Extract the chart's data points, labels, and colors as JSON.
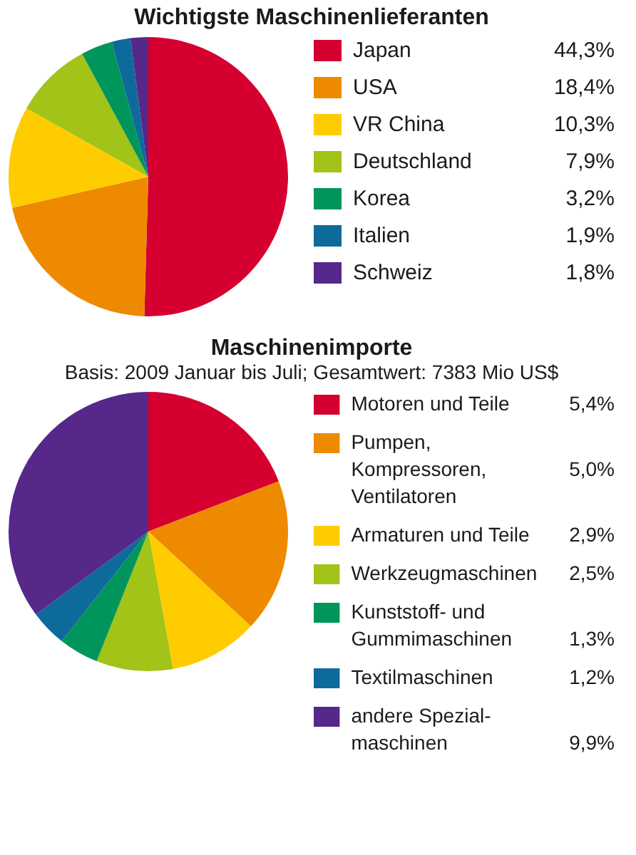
{
  "chart_data": [
    {
      "type": "pie",
      "title": "Wichtigste Maschinenlieferanten",
      "categories": [
        "Japan",
        "USA",
        "VR China",
        "Deutschland",
        "Korea",
        "Italien",
        "Schweiz"
      ],
      "values": [
        44.3,
        18.4,
        10.3,
        7.9,
        3.2,
        1.9,
        1.8
      ],
      "value_labels": [
        "44,3%",
        "18,4%",
        "10,3%",
        "7,9%",
        "3,2%",
        "1,9%",
        "1,8%"
      ],
      "colors": [
        "#d5002f",
        "#ee8a00",
        "#ffcc00",
        "#a2c317",
        "#00955a",
        "#0e6a9a",
        "#55288a"
      ],
      "legend": "right"
    },
    {
      "type": "pie",
      "title": "Maschinenimporte",
      "subtitle": "Basis: 2009 Januar bis Juli; Gesamtwert: 7383 Mio US$",
      "categories": [
        "Motoren und Teile",
        "Pumpen,\nKompressoren,\nVentilatoren",
        "Armaturen und Teile",
        "Werkzeugmaschinen",
        "Kunststoff- und\nGummimaschinen",
        "Textilmaschinen",
        "andere Spezial-\nmaschinen"
      ],
      "values": [
        5.4,
        5.0,
        2.9,
        2.5,
        1.3,
        1.2,
        9.9
      ],
      "value_labels": [
        "5,4%",
        "5,0%",
        "2,9%",
        "2,5%",
        "1,3%",
        "1,2%",
        "9,9%"
      ],
      "colors": [
        "#d5002f",
        "#ee8a00",
        "#ffcc00",
        "#a2c317",
        "#00955a",
        "#0e6a9a",
        "#55288a"
      ],
      "legend": "right"
    }
  ]
}
